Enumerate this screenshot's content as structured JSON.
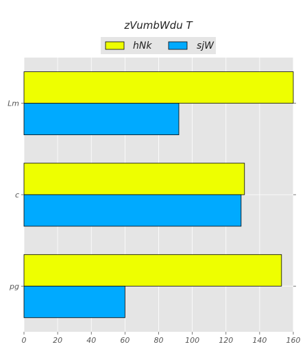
{
  "chart_data": {
    "type": "bar",
    "orientation": "horizontal",
    "title": "zVumbWdu T",
    "categories": [
      "Lm",
      "c",
      "pg"
    ],
    "series": [
      {
        "name": "hNk",
        "values": [
          160,
          131,
          153
        ],
        "color": "#eeff00"
      },
      {
        "name": "sjW",
        "values": [
          92,
          129,
          60
        ],
        "color": "#00aaff"
      }
    ],
    "xlim": [
      0,
      160
    ],
    "x_ticks": [
      0,
      20,
      40,
      60,
      80,
      100,
      120,
      140,
      160
    ],
    "grid": true,
    "legend_position": "top-center",
    "background_color": "#e5e5e5",
    "grid_color": "#ffffff"
  }
}
